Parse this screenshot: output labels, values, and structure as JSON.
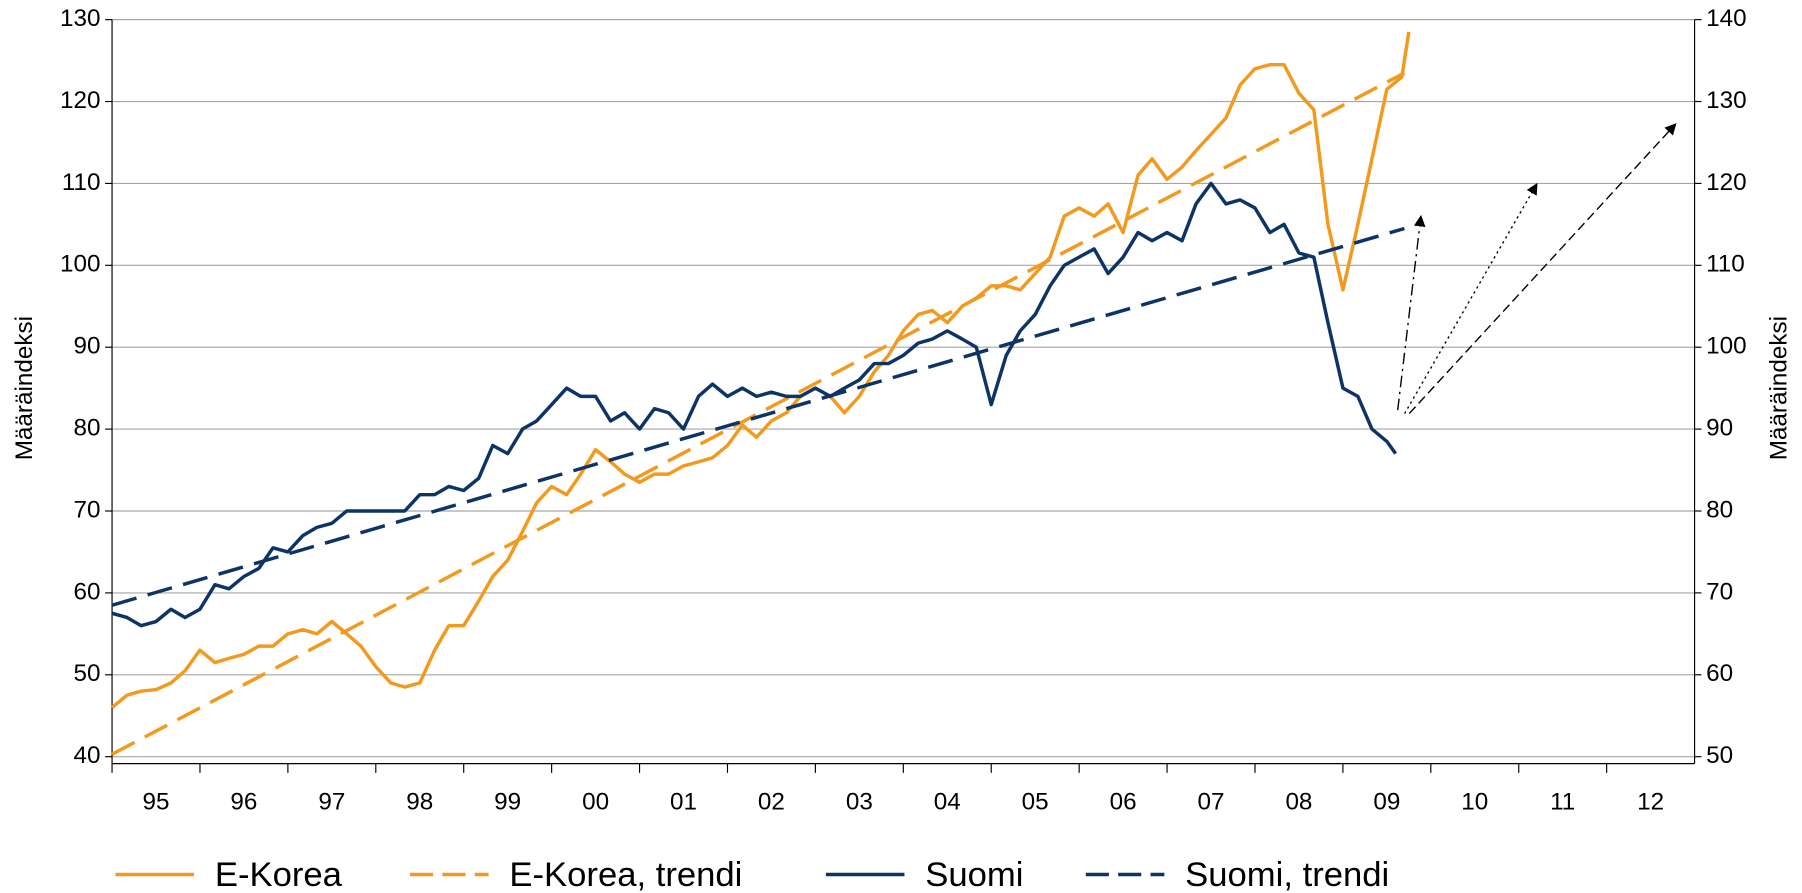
{
  "chart_data": {
    "type": "line",
    "ylabel": "Määräindeksi",
    "y2label": "Määräindeksi",
    "xlim": [
      1995,
      2013
    ],
    "xticks": [
      {
        "value": 1995.5,
        "label": "95"
      },
      {
        "value": 1996.5,
        "label": "96"
      },
      {
        "value": 1997.5,
        "label": "97"
      },
      {
        "value": 1998.5,
        "label": "98"
      },
      {
        "value": 1999.5,
        "label": "99"
      },
      {
        "value": 2000.5,
        "label": "00"
      },
      {
        "value": 2001.5,
        "label": "01"
      },
      {
        "value": 2002.5,
        "label": "02"
      },
      {
        "value": 2003.5,
        "label": "03"
      },
      {
        "value": 2004.5,
        "label": "04"
      },
      {
        "value": 2005.5,
        "label": "05"
      },
      {
        "value": 2006.5,
        "label": "06"
      },
      {
        "value": 2007.5,
        "label": "07"
      },
      {
        "value": 2008.5,
        "label": "08"
      },
      {
        "value": 2009.5,
        "label": "09"
      },
      {
        "value": 2010.5,
        "label": "10"
      },
      {
        "value": 2011.5,
        "label": "11"
      },
      {
        "value": 2012.5,
        "label": "12"
      }
    ],
    "ylim": [
      40,
      130
    ],
    "yticks": [
      40,
      50,
      60,
      70,
      80,
      90,
      100,
      110,
      120,
      130
    ],
    "y2lim": [
      50,
      140
    ],
    "y2ticks": [
      50,
      60,
      70,
      80,
      90,
      100,
      110,
      120,
      130,
      140
    ],
    "grid": true,
    "legend": "bottom",
    "series": [
      {
        "name": "E-Korea",
        "color": "#f29a1f",
        "dash": "solid",
        "axis": "y",
        "x": [
          1995,
          1995.17,
          1995.33,
          1995.5,
          1995.67,
          1995.83,
          1996,
          1996.17,
          1996.33,
          1996.5,
          1996.67,
          1996.83,
          1997,
          1997.17,
          1997.33,
          1997.5,
          1997.67,
          1997.83,
          1998,
          1998.17,
          1998.33,
          1998.5,
          1998.67,
          1998.83,
          1999,
          1999.17,
          1999.33,
          1999.5,
          1999.67,
          1999.83,
          2000,
          2000.17,
          2000.33,
          2000.5,
          2000.67,
          2000.83,
          2001,
          2001.17,
          2001.33,
          2001.5,
          2001.67,
          2001.83,
          2002,
          2002.17,
          2002.33,
          2002.5,
          2002.67,
          2002.83,
          2003,
          2003.17,
          2003.33,
          2003.5,
          2003.67,
          2003.83,
          2004,
          2004.17,
          2004.33,
          2004.5,
          2004.67,
          2004.83,
          2005,
          2005.17,
          2005.33,
          2005.5,
          2005.67,
          2005.83,
          2006,
          2006.17,
          2006.33,
          2006.5,
          2006.67,
          2006.83,
          2007,
          2007.17,
          2007.33,
          2007.5,
          2007.67,
          2007.83,
          2008,
          2008.17,
          2008.33,
          2008.5,
          2008.67,
          2008.83,
          2009,
          2009.17,
          2009.33,
          2009.5,
          2009.67,
          2009.75
        ],
        "values": [
          46,
          47.5,
          48,
          48.2,
          49,
          50.5,
          53,
          51.5,
          52,
          52.5,
          53.5,
          53.5,
          55,
          55.5,
          55,
          56.5,
          55,
          53.5,
          51,
          49,
          48.5,
          49,
          53,
          56,
          56,
          59,
          62,
          64,
          67.5,
          71,
          73,
          72,
          74.5,
          77.5,
          76,
          74.5,
          73.5,
          74.5,
          74.5,
          75.5,
          76,
          76.5,
          78,
          80.5,
          79,
          81,
          82,
          84,
          85,
          84,
          82,
          84,
          87,
          89,
          92,
          94,
          94.5,
          93,
          95,
          96,
          97.5,
          97.5,
          97,
          99,
          101,
          106,
          107,
          106,
          107.5,
          104,
          111,
          113,
          110.5,
          112,
          114,
          116,
          118,
          122,
          124,
          124.5,
          124.5,
          121,
          119,
          105,
          97,
          105,
          113,
          121.5,
          123,
          128.5
        ]
      },
      {
        "name": "E-Korea, trendi",
        "color": "#f29a1f",
        "dash": "long",
        "axis": "y",
        "x": [
          1995,
          2009.7
        ],
        "values": [
          40.3,
          123.5
        ]
      },
      {
        "name": "Suomi",
        "color": "#0d3466",
        "dash": "solid",
        "axis": "y2",
        "x": [
          1995,
          1995.17,
          1995.33,
          1995.5,
          1995.67,
          1995.83,
          1996,
          1996.17,
          1996.33,
          1996.5,
          1996.67,
          1996.83,
          1997,
          1997.17,
          1997.33,
          1997.5,
          1997.67,
          1997.83,
          1998,
          1998.17,
          1998.33,
          1998.5,
          1998.67,
          1998.83,
          1999,
          1999.17,
          1999.33,
          1999.5,
          1999.67,
          1999.83,
          2000,
          2000.17,
          2000.33,
          2000.5,
          2000.67,
          2000.83,
          2001,
          2001.17,
          2001.33,
          2001.5,
          2001.67,
          2001.83,
          2002,
          2002.17,
          2002.33,
          2002.5,
          2002.67,
          2002.83,
          2003,
          2003.17,
          2003.33,
          2003.5,
          2003.67,
          2003.83,
          2004,
          2004.17,
          2004.33,
          2004.5,
          2004.67,
          2004.83,
          2005,
          2005.17,
          2005.33,
          2005.5,
          2005.67,
          2005.83,
          2006,
          2006.17,
          2006.33,
          2006.5,
          2006.67,
          2006.83,
          2007,
          2007.17,
          2007.33,
          2007.5,
          2007.67,
          2007.83,
          2008,
          2008.17,
          2008.33,
          2008.5,
          2008.67,
          2008.83,
          2009,
          2009.17,
          2009.33,
          2009.5,
          2009.6
        ],
        "values": [
          67.5,
          67,
          66,
          66.5,
          68,
          67,
          68,
          71,
          70.5,
          72,
          73,
          75.5,
          75,
          77,
          78,
          78.5,
          80,
          80,
          80,
          80,
          80,
          82,
          82,
          83,
          82.5,
          84,
          88,
          87,
          90,
          91,
          93,
          95,
          94,
          94,
          91,
          92,
          90,
          92.5,
          92,
          90,
          94,
          95.5,
          94,
          95,
          94,
          94.5,
          94,
          94,
          95,
          94,
          95,
          96,
          98,
          98,
          99,
          100.5,
          101,
          102,
          101,
          100,
          93,
          99,
          102,
          104,
          107.5,
          110,
          111,
          112,
          109,
          111,
          114,
          113,
          114,
          113,
          117.5,
          120,
          117.5,
          118,
          117,
          114,
          115,
          111.5,
          111,
          103,
          95,
          94,
          90,
          88.5,
          87
        ]
      },
      {
        "name": "Suomi, trendi",
        "color": "#0d3466",
        "dash": "long",
        "axis": "y2",
        "x": [
          1995,
          2009.7
        ],
        "values": [
          68.5,
          114.5
        ]
      }
    ]
  }
}
